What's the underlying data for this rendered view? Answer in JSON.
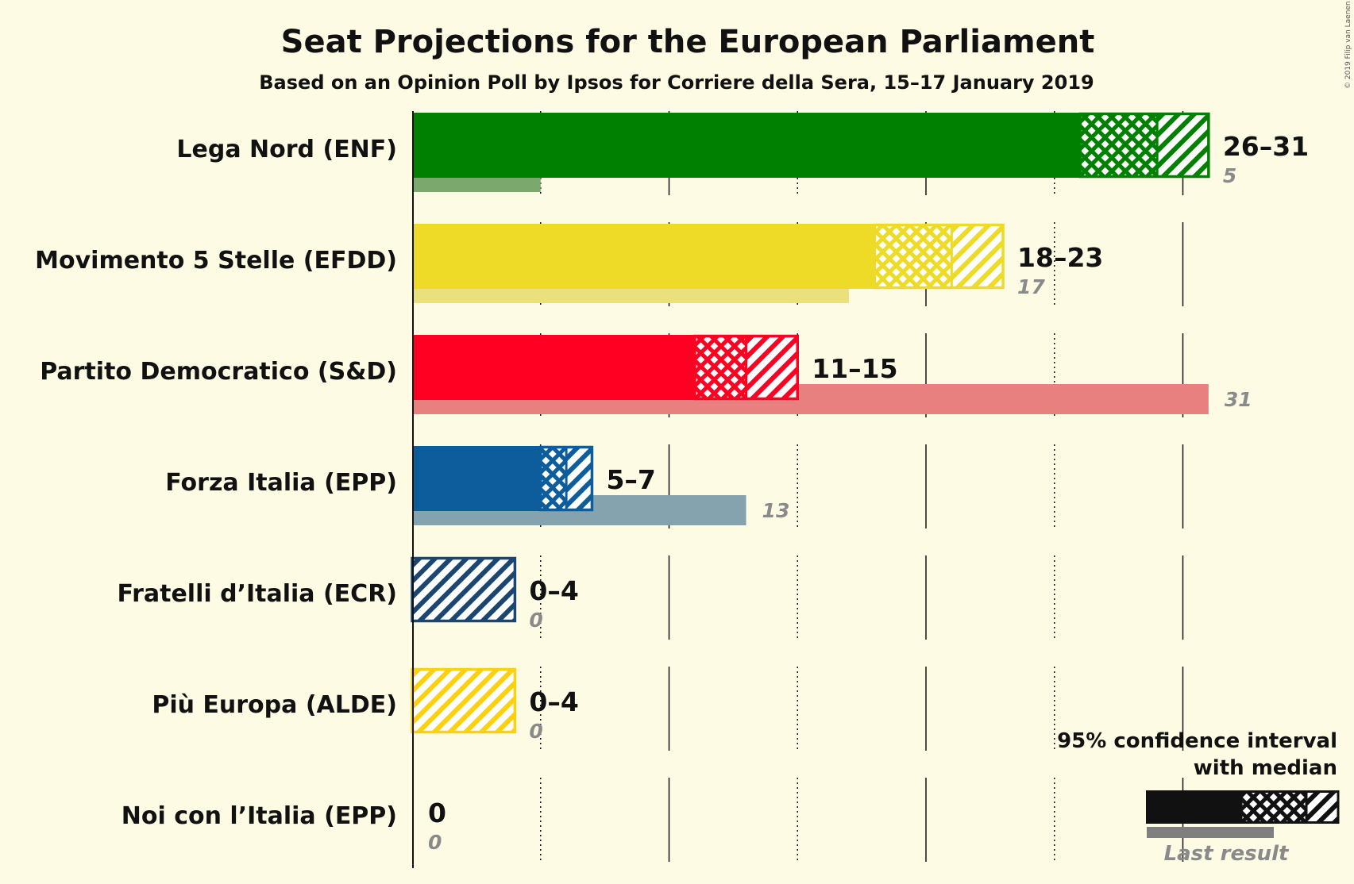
{
  "title": "Seat Projections for the European Parliament",
  "subtitle": "Based on an Opinion Poll by Ipsos for Corriere della Sera, 15–17 January 2019",
  "copyright": "© 2019 Filip van Laenen",
  "legend": {
    "line1": "95% confidence interval",
    "line2": "with median",
    "last_result": "Last result",
    "color": "#111111"
  },
  "chart_data": {
    "type": "bar",
    "title": "Seat Projections for the European Parliament",
    "subtitle": "Based on an Opinion Poll by Ipsos for Corriere della Sera, 15–17 January 2019",
    "xlim": [
      0,
      31
    ],
    "gridlines": [
      5,
      10,
      15,
      20,
      25,
      30
    ],
    "parties": [
      {
        "name": "Lega Nord (ENF)",
        "low": 26,
        "median": 29,
        "high": 31,
        "range": "26–31",
        "last": 5,
        "last_label": "5",
        "color": "#008000",
        "last_color": "#7BA86D"
      },
      {
        "name": "Movimento 5 Stelle (EFDD)",
        "low": 18,
        "median": 21,
        "high": 23,
        "range": "18–23",
        "last": 17,
        "last_label": "17",
        "color": "#EDDB27",
        "last_color": "#EAE07E"
      },
      {
        "name": "Partito Democratico (S&D)",
        "low": 11,
        "median": 13,
        "high": 15,
        "range": "11–15",
        "last": 31,
        "last_label": "31",
        "color": "#FF0022",
        "last_color": "#E88080"
      },
      {
        "name": "Forza Italia (EPP)",
        "low": 5,
        "median": 6,
        "high": 7,
        "range": "5–7",
        "last": 13,
        "last_label": "13",
        "color": "#0D5C9C",
        "last_color": "#84A3AE"
      },
      {
        "name": "Fratelli d’Italia (ECR)",
        "low": 0,
        "median": 0,
        "high": 4,
        "range": "0–4",
        "last": 0,
        "last_label": "0",
        "color": "#1A4670",
        "last_color": "#8A9AAA"
      },
      {
        "name": "Più Europa (ALDE)",
        "low": 0,
        "median": 0,
        "high": 4,
        "range": "0–4",
        "last": 0,
        "last_label": "0",
        "color": "#FFD00C",
        "last_color": "#EAD88A"
      },
      {
        "name": "Noi con l’Italia (EPP)",
        "low": 0,
        "median": 0,
        "high": 0,
        "range": "0",
        "last": 0,
        "last_label": "0",
        "color": "#0D5C9C",
        "last_color": "#84A3AE"
      }
    ]
  }
}
